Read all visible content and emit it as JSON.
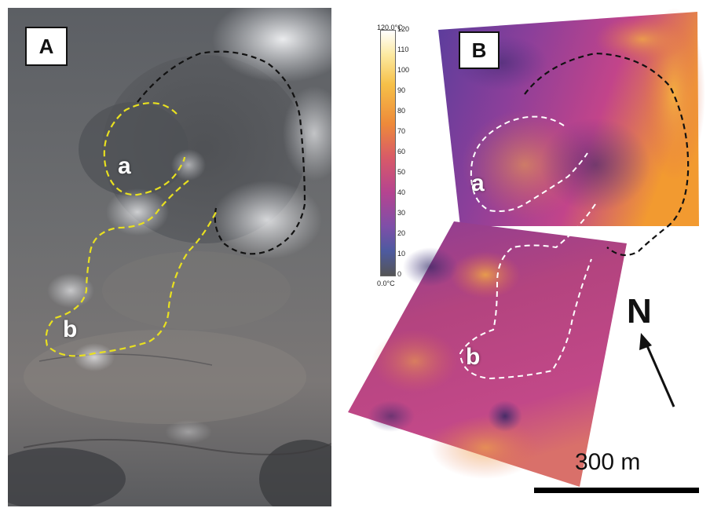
{
  "panels": {
    "a": {
      "label": "A",
      "regions": [
        "a",
        "b"
      ]
    },
    "b": {
      "label": "B",
      "regions": [
        "a",
        "b"
      ]
    }
  },
  "colorbar": {
    "max_label": "120.0°C",
    "min_label": "0.0°C",
    "ticks": [
      "120",
      "110",
      "100",
      "90",
      "80",
      "70",
      "60",
      "50",
      "40",
      "30",
      "20",
      "10",
      "0"
    ]
  },
  "north": {
    "label": "N"
  },
  "scale": {
    "label": "300 m"
  },
  "colors": {
    "outline_a_yellow": "#e8e020",
    "outline_dark": "#111111",
    "outline_white": "#ffffff",
    "thermal_hot": "#f0a020",
    "thermal_mid": "#c03a8a",
    "thermal_cold": "#3a2a7a"
  }
}
